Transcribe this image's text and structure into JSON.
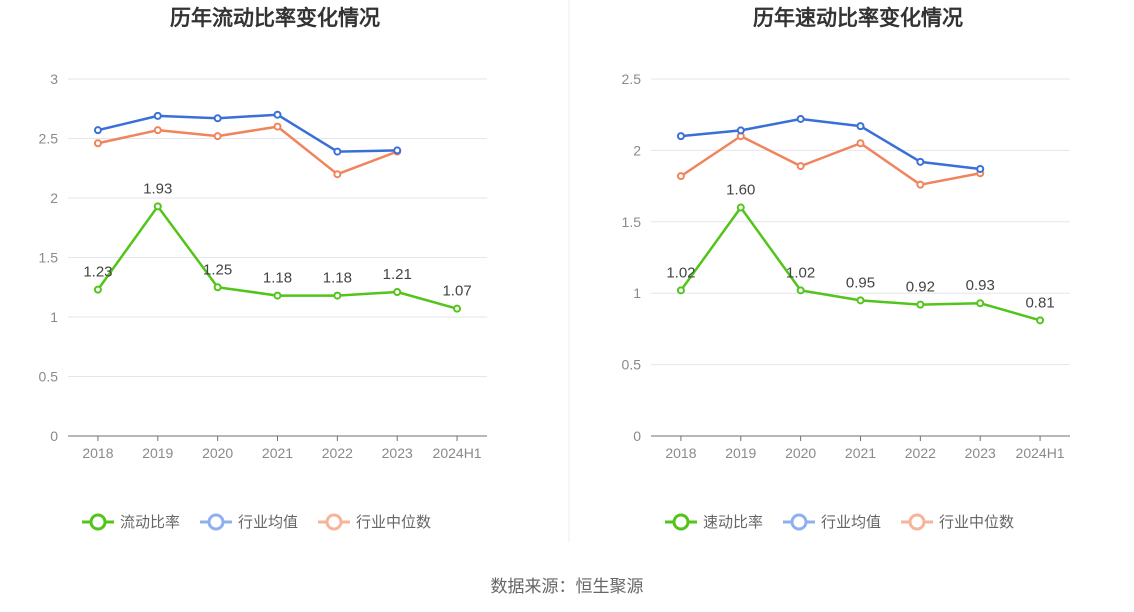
{
  "source_label": "数据来源：恒生聚源",
  "chart_data": [
    {
      "type": "line",
      "title": "历年流动比率变化情况",
      "categories": [
        "2018",
        "2019",
        "2020",
        "2021",
        "2022",
        "2023",
        "2024H1"
      ],
      "ylim": [
        0,
        3
      ],
      "yticks": [
        0,
        0.5,
        1,
        1.5,
        2,
        2.5,
        3
      ],
      "ytick_labels": [
        "0",
        "0.5",
        "1",
        "1.5",
        "2",
        "2.5",
        "3"
      ],
      "grid": true,
      "legend_position": "bottom",
      "series": [
        {
          "name": "流动比率",
          "color": "#52c41a",
          "labeled": true,
          "values": [
            1.23,
            1.93,
            1.25,
            1.18,
            1.18,
            1.21,
            1.07
          ],
          "labels": [
            "1.23",
            "1.93",
            "1.25",
            "1.18",
            "1.18",
            "1.21",
            "1.07"
          ]
        },
        {
          "name": "行业均值",
          "color": "#3a6fd8",
          "legend_color": "#8fb0ee",
          "labeled": false,
          "values": [
            2.57,
            2.69,
            2.67,
            2.7,
            2.39,
            2.4,
            null
          ]
        },
        {
          "name": "行业中位数",
          "color": "#f0845c",
          "legend_color": "#f6b49a",
          "labeled": false,
          "values": [
            2.46,
            2.57,
            2.52,
            2.6,
            2.2,
            2.39,
            null
          ]
        }
      ]
    },
    {
      "type": "line",
      "title": "历年速动比率变化情况",
      "categories": [
        "2018",
        "2019",
        "2020",
        "2021",
        "2022",
        "2023",
        "2024H1"
      ],
      "ylim": [
        0,
        2.5
      ],
      "yticks": [
        0,
        0.5,
        1,
        1.5,
        2,
        2.5
      ],
      "ytick_labels": [
        "0",
        "0.5",
        "1",
        "1.5",
        "2",
        "2.5"
      ],
      "grid": true,
      "legend_position": "bottom",
      "series": [
        {
          "name": "速动比率",
          "color": "#52c41a",
          "labeled": true,
          "values": [
            1.02,
            1.6,
            1.02,
            0.95,
            0.92,
            0.93,
            0.81
          ],
          "labels": [
            "1.02",
            "1.60",
            "1.02",
            "0.95",
            "0.92",
            "0.93",
            "0.81"
          ]
        },
        {
          "name": "行业均值",
          "color": "#3a6fd8",
          "legend_color": "#8fb0ee",
          "labeled": false,
          "values": [
            2.1,
            2.14,
            2.22,
            2.17,
            1.92,
            1.87,
            null
          ]
        },
        {
          "name": "行业中位数",
          "color": "#f0845c",
          "legend_color": "#f6b49a",
          "labeled": false,
          "values": [
            1.82,
            2.1,
            1.89,
            2.05,
            1.76,
            1.84,
            null
          ]
        }
      ]
    }
  ]
}
